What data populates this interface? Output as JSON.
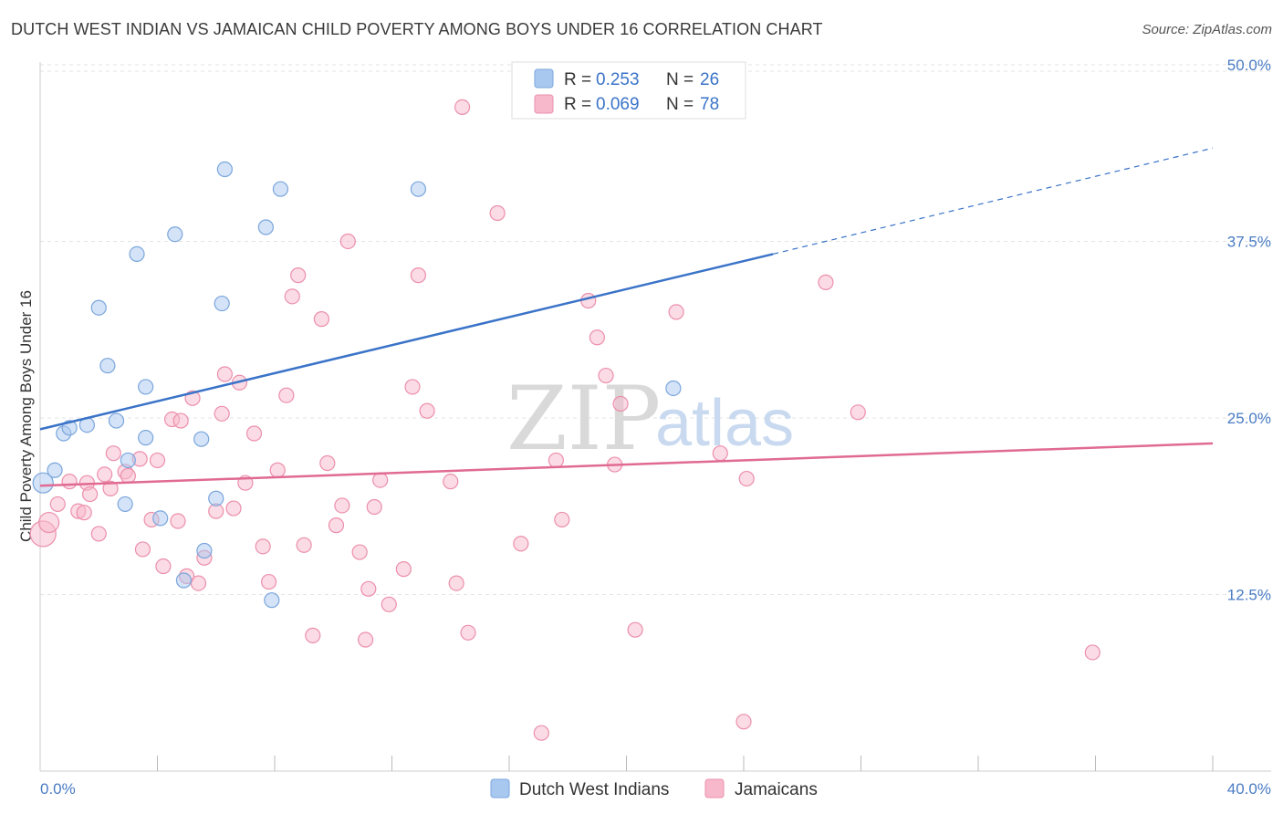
{
  "title": "DUTCH WEST INDIAN VS JAMAICAN CHILD POVERTY AMONG BOYS UNDER 16 CORRELATION CHART",
  "source": "Source: ZipAtlas.com",
  "watermark": {
    "zip": "ZIP",
    "atlas": "atlas"
  },
  "legend": {
    "rows": [
      {
        "r_label": "R = ",
        "r_value": "0.253",
        "n_label": "N = ",
        "n_value": "26",
        "color": "#a9c8f0"
      },
      {
        "r_label": "R = ",
        "r_value": "0.069",
        "n_label": "N = ",
        "n_value": "78",
        "color": "#f7b8cc"
      }
    ]
  },
  "bottom_legend": [
    "Dutch West Indians",
    "Jamaicans"
  ],
  "chart_data": {
    "type": "scatter",
    "title": "DUTCH WEST INDIAN VS JAMAICAN CHILD POVERTY AMONG BOYS UNDER 16 CORRELATION CHART",
    "xlabel": "",
    "ylabel": "Child Poverty Among Boys Under 16",
    "xlim": [
      0,
      40
    ],
    "ylim": [
      0,
      52
    ],
    "x_tick_labels": [
      "0.0%",
      "40.0%"
    ],
    "y_ticks": [
      12.5,
      25.0,
      37.5,
      50.0
    ],
    "y_tick_labels": [
      "12.5%",
      "25.0%",
      "37.5%",
      "50.0%"
    ],
    "grid": true,
    "legend_position": "top-center",
    "series": [
      {
        "name": "Dutch West Indians",
        "color": "#a9c8f0",
        "stroke": "#7aa6dc",
        "trend_color": "#3a73c8",
        "trend": {
          "x0": 0,
          "y0": 24.2,
          "x1": 25,
          "y1": 36.6,
          "x_ext": 40,
          "y_ext_end": 44.1
        },
        "points": [
          [
            0.1,
            20.4
          ],
          [
            0.5,
            21.3
          ],
          [
            0.8,
            23.9
          ],
          [
            1.0,
            24.3
          ],
          [
            1.6,
            24.5
          ],
          [
            2.6,
            24.8
          ],
          [
            2.9,
            18.9
          ],
          [
            3.6,
            23.6
          ],
          [
            3.0,
            22.0
          ],
          [
            2.3,
            28.7
          ],
          [
            3.6,
            27.2
          ],
          [
            2.0,
            32.8
          ],
          [
            3.3,
            36.6
          ],
          [
            4.6,
            38.0
          ],
          [
            6.3,
            42.6
          ],
          [
            8.2,
            41.2
          ],
          [
            7.7,
            38.5
          ],
          [
            6.2,
            33.1
          ],
          [
            5.5,
            23.5
          ],
          [
            6.0,
            19.3
          ],
          [
            4.1,
            17.9
          ],
          [
            5.6,
            15.6
          ],
          [
            4.9,
            13.5
          ],
          [
            7.9,
            12.1
          ],
          [
            12.9,
            41.2
          ],
          [
            21.6,
            27.1
          ]
        ]
      },
      {
        "name": "Jamaicans",
        "color": "#f7b8cc",
        "stroke": "#ec8fab",
        "trend_color": "#e06a92",
        "trend": {
          "x0": 0,
          "y0": 20.2,
          "x1": 40,
          "y1": 23.2
        },
        "points": [
          [
            0.1,
            16.8
          ],
          [
            0.3,
            17.6
          ],
          [
            0.6,
            18.9
          ],
          [
            1.0,
            20.5
          ],
          [
            1.3,
            18.4
          ],
          [
            1.5,
            18.3
          ],
          [
            1.6,
            20.4
          ],
          [
            1.7,
            19.6
          ],
          [
            2.0,
            16.8
          ],
          [
            2.2,
            21.0
          ],
          [
            2.4,
            20.0
          ],
          [
            2.5,
            22.5
          ],
          [
            2.9,
            21.2
          ],
          [
            3.0,
            20.9
          ],
          [
            3.4,
            22.1
          ],
          [
            3.5,
            15.7
          ],
          [
            3.8,
            17.8
          ],
          [
            4.0,
            22.0
          ],
          [
            4.2,
            14.5
          ],
          [
            4.5,
            24.9
          ],
          [
            4.7,
            17.7
          ],
          [
            4.8,
            24.8
          ],
          [
            5.0,
            13.8
          ],
          [
            5.2,
            26.4
          ],
          [
            5.4,
            13.3
          ],
          [
            5.6,
            15.1
          ],
          [
            6.0,
            18.4
          ],
          [
            6.2,
            25.3
          ],
          [
            6.3,
            28.1
          ],
          [
            6.6,
            18.6
          ],
          [
            6.8,
            27.5
          ],
          [
            7.0,
            20.4
          ],
          [
            7.3,
            23.9
          ],
          [
            7.6,
            15.9
          ],
          [
            7.8,
            13.4
          ],
          [
            8.1,
            21.3
          ],
          [
            8.4,
            26.6
          ],
          [
            8.6,
            33.6
          ],
          [
            8.8,
            35.1
          ],
          [
            9.0,
            16.0
          ],
          [
            9.3,
            9.6
          ],
          [
            9.6,
            32.0
          ],
          [
            9.8,
            21.8
          ],
          [
            10.1,
            17.4
          ],
          [
            10.3,
            18.8
          ],
          [
            10.5,
            37.5
          ],
          [
            10.9,
            15.5
          ],
          [
            11.1,
            9.3
          ],
          [
            11.2,
            12.9
          ],
          [
            11.4,
            18.7
          ],
          [
            11.6,
            20.6
          ],
          [
            11.9,
            11.8
          ],
          [
            12.4,
            14.3
          ],
          [
            12.7,
            27.2
          ],
          [
            12.9,
            35.1
          ],
          [
            13.2,
            25.5
          ],
          [
            14.0,
            20.5
          ],
          [
            14.2,
            13.3
          ],
          [
            14.4,
            47.0
          ],
          [
            14.6,
            9.8
          ],
          [
            15.6,
            39.5
          ],
          [
            16.4,
            16.1
          ],
          [
            17.1,
            2.7
          ],
          [
            17.6,
            22.0
          ],
          [
            17.8,
            17.8
          ],
          [
            18.7,
            33.3
          ],
          [
            19.0,
            30.7
          ],
          [
            19.3,
            28.0
          ],
          [
            19.6,
            21.7
          ],
          [
            19.8,
            26.0
          ],
          [
            20.3,
            10.0
          ],
          [
            21.7,
            32.5
          ],
          [
            23.2,
            22.5
          ],
          [
            24.1,
            20.7
          ],
          [
            24.0,
            3.5
          ],
          [
            26.8,
            34.6
          ],
          [
            27.9,
            25.4
          ],
          [
            35.9,
            8.4
          ]
        ]
      }
    ]
  }
}
